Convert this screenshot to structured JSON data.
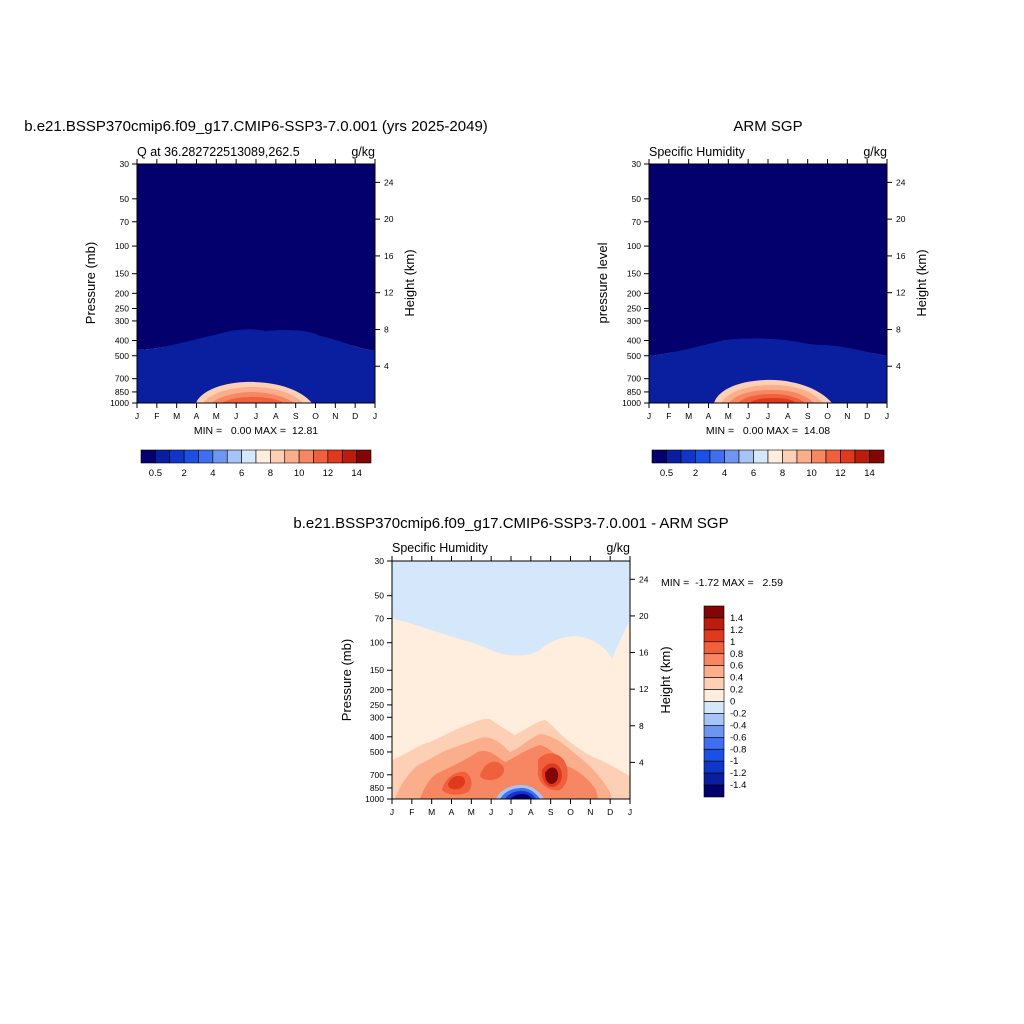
{
  "chart_data": [
    {
      "type": "heatmap",
      "title": "b.e21.BSSP370cmip6.f09_g17.CMIP6-SSP3-7.0.001 (yrs 2025-2049)",
      "left_label": "Q at 36.282722513089,262.5",
      "right_label": "g/kg",
      "xlabel": "",
      "ylabel": "Pressure (mb)",
      "ylabel_right": "Height (km)",
      "x_ticks": [
        "J",
        "F",
        "M",
        "A",
        "M",
        "J",
        "J",
        "A",
        "S",
        "O",
        "N",
        "D",
        "J"
      ],
      "y_ticks": [
        30,
        50,
        70,
        100,
        150,
        200,
        250,
        300,
        400,
        500,
        700,
        850,
        1000
      ],
      "ylim": [
        30,
        1000
      ],
      "height_ticks": [
        24,
        20,
        16,
        12,
        8,
        4
      ],
      "stats": "MIN =   0.00 MAX =  12.81",
      "min": 0.0,
      "max": 12.81,
      "colorbar_ticks": [
        "0.5",
        "2",
        "4",
        "6",
        "8",
        "10",
        "12",
        "14"
      ],
      "colorbar_orientation": "horizontal",
      "colors": [
        "#03006e",
        "#0a1fa0",
        "#0f36c8",
        "#1a50e4",
        "#3f6ef0",
        "#6f95f2",
        "#a6c4f6",
        "#d5e8fb",
        "#ffeedd",
        "#fdd0b5",
        "#fbae8c",
        "#f78662",
        "#f0603c",
        "#e03a1c",
        "#bb1d0d",
        "#820606"
      ]
    },
    {
      "type": "heatmap",
      "title": "ARM SGP",
      "left_label": "Specific Humidity",
      "right_label": "g/kg",
      "xlabel": "",
      "ylabel": "pressure level",
      "ylabel_right": "Height (km)",
      "x_ticks": [
        "J",
        "F",
        "M",
        "A",
        "M",
        "J",
        "J",
        "A",
        "S",
        "O",
        "N",
        "D",
        "J"
      ],
      "y_ticks": [
        30,
        50,
        70,
        100,
        150,
        200,
        250,
        300,
        400,
        500,
        700,
        850,
        1000
      ],
      "ylim": [
        30,
        1000
      ],
      "height_ticks": [
        24,
        20,
        16,
        12,
        8,
        4
      ],
      "stats": "MIN =   0.00 MAX =  14.08",
      "min": 0.0,
      "max": 14.08,
      "colorbar_ticks": [
        "0.5",
        "2",
        "4",
        "6",
        "8",
        "10",
        "12",
        "14"
      ],
      "colorbar_orientation": "horizontal",
      "colors": [
        "#03006e",
        "#0a1fa0",
        "#0f36c8",
        "#1a50e4",
        "#3f6ef0",
        "#6f95f2",
        "#a6c4f6",
        "#d5e8fb",
        "#ffeedd",
        "#fdd0b5",
        "#fbae8c",
        "#f78662",
        "#f0603c",
        "#e03a1c",
        "#bb1d0d",
        "#820606"
      ]
    },
    {
      "type": "heatmap",
      "title": "b.e21.BSSP370cmip6.f09_g17.CMIP6-SSP3-7.0.001 - ARM SGP",
      "left_label": "Specific Humidity",
      "right_label": "g/kg",
      "xlabel": "",
      "ylabel": "Pressure (mb)",
      "ylabel_right": "Height (km)",
      "x_ticks": [
        "J",
        "F",
        "M",
        "A",
        "M",
        "J",
        "J",
        "A",
        "S",
        "O",
        "N",
        "D",
        "J"
      ],
      "y_ticks": [
        30,
        50,
        70,
        100,
        150,
        200,
        250,
        300,
        400,
        500,
        700,
        850,
        1000
      ],
      "ylim": [
        30,
        1000
      ],
      "height_ticks": [
        24,
        20,
        16,
        12,
        8,
        4
      ],
      "stats": "MIN =  -1.72 MAX =   2.59",
      "min": -1.72,
      "max": 2.59,
      "colorbar_ticks": [
        "1.4",
        "1.2",
        "1",
        "0.8",
        "0.6",
        "0.4",
        "0.2",
        "0",
        "-0.2",
        "-0.4",
        "-0.6",
        "-0.8",
        "-1",
        "-1.2",
        "-1.4"
      ],
      "colorbar_orientation": "vertical",
      "colors": [
        "#820606",
        "#bb1d0d",
        "#e03a1c",
        "#f0603c",
        "#f78662",
        "#fbae8c",
        "#fdd0b5",
        "#ffeedd",
        "#d5e8fb",
        "#a6c4f6",
        "#6f95f2",
        "#3f6ef0",
        "#1a50e4",
        "#0f36c8",
        "#0a1fa0",
        "#03006e"
      ]
    }
  ]
}
